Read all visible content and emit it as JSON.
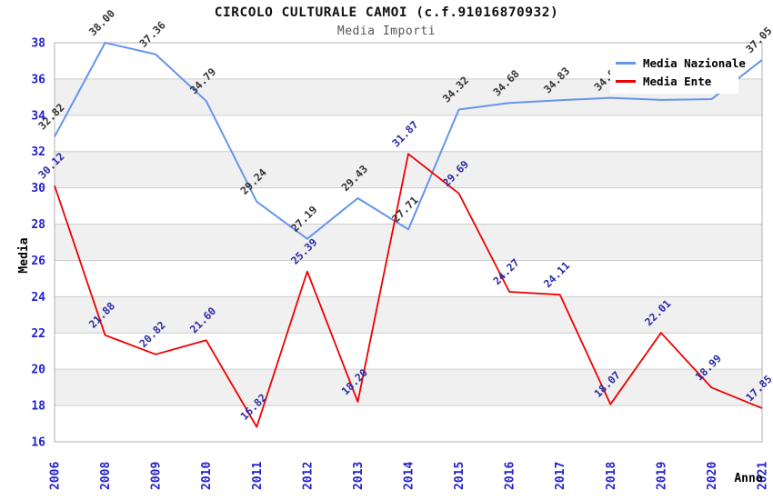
{
  "header": {
    "title": "CIRCOLO CULTURALE CAMOI (c.f.91016870932)",
    "subtitle": "Media Importi"
  },
  "axes": {
    "y_title": "Media",
    "x_title": "Anno",
    "x_tick_labels": [
      "2006",
      "2008",
      "2009",
      "2010",
      "2011",
      "2012",
      "2013",
      "2014",
      "2015",
      "2016",
      "2017",
      "2018",
      "2019",
      "2020",
      "2021"
    ],
    "y_tick_labels": [
      "16",
      "18",
      "20",
      "22",
      "24",
      "26",
      "28",
      "30",
      "32",
      "34",
      "36",
      "38"
    ]
  },
  "legend": {
    "items": [
      {
        "label": "Media Nazionale",
        "color": "#6495ED"
      },
      {
        "label": "Media Ente",
        "color": "#EE0000"
      }
    ]
  },
  "chart_data": {
    "type": "line",
    "title": "CIRCOLO CULTURALE CAMOI (c.f.91016870932)",
    "subtitle": "Media Importi",
    "xlabel": "Anno",
    "ylabel": "Media",
    "x": [
      2006,
      2008,
      2009,
      2010,
      2011,
      2012,
      2013,
      2014,
      2015,
      2016,
      2017,
      2018,
      2019,
      2020,
      2021
    ],
    "series": [
      {
        "name": "Media Nazionale",
        "color": "#6495ED",
        "label_color": "#333333",
        "stroke_width": 2,
        "values": [
          32.82,
          38.0,
          37.36,
          34.79,
          29.24,
          27.19,
          29.43,
          27.71,
          34.32,
          34.68,
          34.83,
          34.96,
          34.85,
          34.89,
          37.05
        ]
      },
      {
        "name": "Media Ente",
        "color": "#EE0000",
        "label_color": "#2A2AA8",
        "stroke_width": 1.8,
        "values": [
          30.12,
          21.88,
          20.82,
          21.6,
          16.82,
          25.39,
          18.2,
          31.87,
          29.69,
          24.27,
          24.11,
          18.07,
          22.01,
          18.99,
          17.85
        ]
      }
    ],
    "ylim": [
      16,
      38
    ],
    "ytick_step": 2,
    "grid": true,
    "legend_position": "top-right"
  },
  "colors": {
    "tick_label": "#2222CC",
    "axis_title": "#000000",
    "subtitle_text": "#555555",
    "band_fill": "#F0F0F0",
    "grid_line": "#CCCCCC",
    "frame": "#B0B0B0",
    "background": "#FFFFFF"
  }
}
